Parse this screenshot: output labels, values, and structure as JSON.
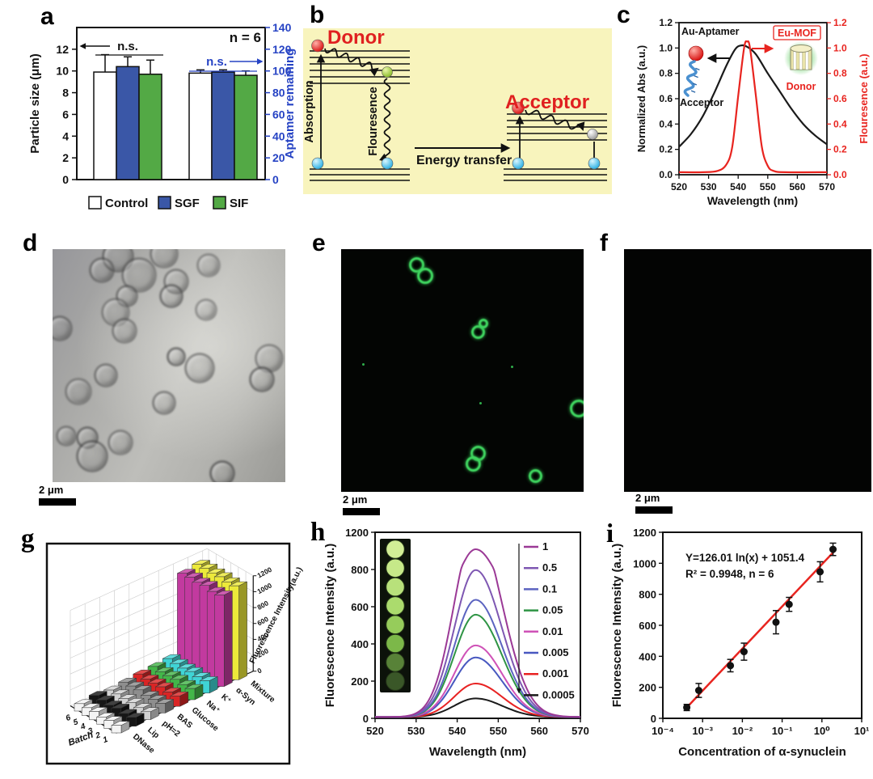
{
  "panels": {
    "a": {
      "label": "a"
    },
    "b": {
      "label": "b",
      "donor": "Donor",
      "acceptor": "Acceptor",
      "absorption": "Absorption",
      "fluorescence": "Flouresence",
      "energy_transfer": "Energy transfer"
    },
    "c": {
      "label": "c"
    },
    "d": {
      "label": "d",
      "scale_bar": "2 μm",
      "cells": [
        [
          27,
          2,
          34
        ],
        [
          47,
          1,
          30
        ],
        [
          20,
          8,
          26
        ],
        [
          36,
          10,
          38
        ],
        [
          52,
          13,
          26
        ],
        [
          66,
          6,
          24
        ],
        [
          50,
          19,
          24
        ],
        [
          31,
          19,
          22
        ],
        [
          26,
          26,
          30
        ],
        [
          30,
          34,
          26
        ],
        [
          65,
          25,
          22
        ],
        [
          2,
          33,
          26
        ],
        [
          62,
          50,
          32
        ],
        [
          52,
          45,
          18
        ],
        [
          22,
          53,
          24
        ],
        [
          10,
          60,
          28
        ],
        [
          47,
          65,
          24
        ],
        [
          92,
          46,
          30
        ],
        [
          89,
          55,
          26
        ],
        [
          14,
          80,
          22
        ],
        [
          28,
          82,
          26
        ],
        [
          5,
          79,
          20
        ],
        [
          16,
          88,
          34
        ],
        [
          72,
          95,
          26
        ]
      ]
    },
    "e": {
      "label": "e",
      "scale_bar": "2 μm",
      "rings": [
        [
          30,
          5.5,
          13
        ],
        [
          33.5,
          10,
          14
        ],
        [
          55.5,
          33,
          11
        ],
        [
          57.5,
          29.5,
          6
        ],
        [
          97,
          64.5,
          16
        ],
        [
          55.5,
          83,
          13
        ],
        [
          53.5,
          87.5,
          13
        ],
        [
          79,
          92.5,
          11
        ]
      ],
      "dots": [
        [
          8.5,
          47
        ],
        [
          70,
          48
        ],
        [
          57,
          63
        ]
      ]
    },
    "f": {
      "label": "f",
      "scale_bar": "2 μm"
    },
    "g": {
      "label": "g"
    },
    "h": {
      "label": "h"
    },
    "i": {
      "label": "i"
    }
  },
  "chart_data": [
    {
      "id": "a",
      "type": "bar",
      "note": "n = 6",
      "ns_label": "n.s.",
      "left_axis": {
        "label": "Particle size (μm)",
        "ticks": [
          0,
          2,
          4,
          6,
          8,
          10,
          12
        ],
        "max": 14
      },
      "right_axis": {
        "label": "Aptamer remaining",
        "ticks": [
          0,
          20,
          40,
          60,
          80,
          100,
          120,
          140
        ],
        "max": 140,
        "color": "#2643c4"
      },
      "series_names": [
        "Control",
        "SGF",
        "SIF"
      ],
      "colors": [
        "#ffffff",
        "#3a57a7",
        "#53a945"
      ],
      "groups": [
        {
          "axis": "left",
          "values": [
            9.9,
            10.4,
            9.7
          ],
          "errors": [
            1.6,
            0.9,
            1.3
          ]
        },
        {
          "axis": "right",
          "values": [
            98,
            99,
            96
          ],
          "errors": [
            3,
            2,
            4
          ]
        }
      ],
      "legend": [
        "Control",
        "SGF",
        "SIF"
      ]
    },
    {
      "id": "c",
      "type": "line",
      "x_label": "Wavelength (nm)",
      "xlim": [
        520,
        570
      ],
      "xticks": [
        520,
        530,
        540,
        550,
        560,
        570
      ],
      "y_left_label": "Normalized Abs (a.u.)",
      "y_right_label": "Flouresence (a.u.)",
      "yticks": [
        0.0,
        0.2,
        0.4,
        0.6,
        0.8,
        1.0,
        1.2
      ],
      "ymax": 1.2,
      "series": [
        {
          "name": "Au-aptamer absorption",
          "color": "#1a1a1a",
          "axis": "left",
          "points": [
            [
              520,
              0.22
            ],
            [
              524,
              0.32
            ],
            [
              528,
              0.46
            ],
            [
              532,
              0.65
            ],
            [
              536,
              0.86
            ],
            [
              539,
              0.99
            ],
            [
              541,
              1.02
            ],
            [
              543,
              1.01
            ],
            [
              546,
              0.95
            ],
            [
              550,
              0.8
            ],
            [
              554,
              0.66
            ],
            [
              558,
              0.52
            ],
            [
              562,
              0.4
            ],
            [
              566,
              0.31
            ],
            [
              570,
              0.24
            ]
          ]
        },
        {
          "name": "Eu-MOF fluorescence",
          "color": "#e8241f",
          "axis": "right",
          "points": [
            [
              520,
              0.02
            ],
            [
              528,
              0.02
            ],
            [
              533,
              0.03
            ],
            [
              536,
              0.08
            ],
            [
              538,
              0.22
            ],
            [
              540,
              0.62
            ],
            [
              542,
              1.0
            ],
            [
              543,
              1.05
            ],
            [
              544,
              1.0
            ],
            [
              546,
              0.62
            ],
            [
              548,
              0.22
            ],
            [
              550,
              0.07
            ],
            [
              552,
              0.03
            ],
            [
              556,
              0.02
            ],
            [
              570,
              0.02
            ]
          ]
        }
      ],
      "inset": {
        "au_aptamer": "Au-Aptamer",
        "acceptor": "Acceptor",
        "eu_mof": "Eu-MOF",
        "donor": "Donor"
      }
    },
    {
      "id": "g",
      "type": "bar3d",
      "z_label": "Fluorescence Intensity(a.u.)",
      "zticks": [
        0,
        200,
        400,
        600,
        800,
        1000,
        1200
      ],
      "zmax": 1200,
      "batch_label": "Batch",
      "batches": [
        "1",
        "2",
        "3",
        "4",
        "5",
        "6"
      ],
      "rows": [
        {
          "name": "DNase",
          "color": "#f4f4f4",
          "values": [
            95,
            102,
            90,
            105,
            97,
            93
          ]
        },
        {
          "name": "Lip",
          "color": "#161616",
          "values": [
            112,
            106,
            118,
            102,
            110,
            114
          ]
        },
        {
          "name": "pH=2",
          "color": "#d2d2d2",
          "values": [
            100,
            96,
            106,
            99,
            103,
            97
          ]
        },
        {
          "name": "BAS",
          "color": "#8e8e8e",
          "values": [
            121,
            116,
            111,
            126,
            119,
            113
          ]
        },
        {
          "name": "Glucose",
          "color": "#d92525",
          "values": [
            131,
            126,
            136,
            129,
            123,
            132
          ]
        },
        {
          "name": "Na⁺",
          "color": "#43b649",
          "values": [
            141,
            136,
            146,
            139,
            133,
            143
          ]
        },
        {
          "name": "K⁺",
          "color": "#3fd4d4",
          "values": [
            156,
            151,
            161,
            149,
            153,
            159
          ]
        },
        {
          "name": "α-Syn",
          "color": "#c23a9f",
          "values": [
            1150,
            1140,
            1160,
            1145,
            1155,
            1148
          ]
        },
        {
          "name": "Mixture",
          "color": "#ece93a",
          "values": [
            1182,
            1176,
            1186,
            1179,
            1184,
            1177
          ]
        }
      ]
    },
    {
      "id": "h",
      "type": "line",
      "y_label": "Fluorescence Intensity (a.u.)",
      "x_label": "Wavelength (nm)",
      "xlim": [
        520,
        570
      ],
      "xticks": [
        520,
        530,
        540,
        550,
        560,
        570
      ],
      "ytick_labels": [
        "0",
        "200",
        "400",
        "600",
        "800",
        "1200"
      ],
      "ytick_values": [
        0,
        200,
        400,
        600,
        800,
        1200
      ],
      "peak_nm": 544.5,
      "series": [
        {
          "label": "1",
          "color": "#9b3996",
          "peak": 1010
        },
        {
          "label": "0.5",
          "color": "#7e57b2",
          "peak": 790
        },
        {
          "label": "0.1",
          "color": "#5b63c0",
          "peak": 630
        },
        {
          "label": "0.05",
          "color": "#2e9444",
          "peak": 550
        },
        {
          "label": "0.01",
          "color": "#cf52b7",
          "peak": 385
        },
        {
          "label": "0.005",
          "color": "#4858c0",
          "peak": 320
        },
        {
          "label": "0.001",
          "color": "#e82222",
          "peak": 180
        },
        {
          "label": "0.0005",
          "color": "#1a1a1a",
          "peak": 100
        }
      ],
      "wells": [
        "#d2ee96",
        "#c6e989",
        "#b8e17b",
        "#abdb6d",
        "#96cc5b",
        "#7cb849",
        "#588238",
        "#3a5728"
      ]
    },
    {
      "id": "i",
      "type": "scatter",
      "y_label": "Fluorescence Intensity (a.u.)",
      "x_label": "Concentration of α-synuclein",
      "equation": "Y=126.01 ln(x) + 1051.4",
      "stats": "R² = 0.9948, n = 6",
      "yticks": [
        0,
        200,
        400,
        600,
        800,
        1000,
        1200
      ],
      "xtick_labels": [
        "10⁻⁴",
        "10⁻³",
        "10⁻²",
        "10⁻¹",
        "10⁰",
        "10¹"
      ],
      "points": [
        [
          0.0004,
          70,
          20
        ],
        [
          0.0008,
          180,
          45
        ],
        [
          0.005,
          340,
          40
        ],
        [
          0.011,
          430,
          55
        ],
        [
          0.07,
          620,
          75
        ],
        [
          0.15,
          735,
          45
        ],
        [
          0.9,
          945,
          65
        ],
        [
          1.9,
          1090,
          40
        ]
      ],
      "fit": {
        "color": "#e8241f",
        "x1": 0.0004,
        "y1": 70,
        "x2": 2.0,
        "y2": 1075
      }
    }
  ]
}
